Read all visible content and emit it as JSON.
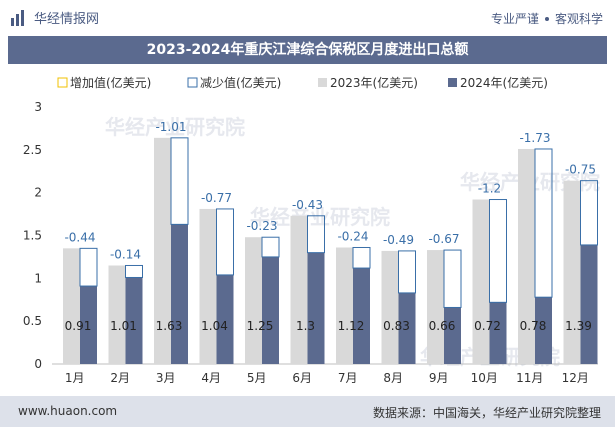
{
  "header": {
    "logo_text": "华经情报网",
    "slogan_left": "专业严谨",
    "slogan_right": "客观科学"
  },
  "title": "2023-2024年重庆江津综合保税区月度进出口总额",
  "watermark": "华经产业研究院",
  "footer": {
    "website": "www.huaon.com",
    "source": "数据来源：中国海关，华经产业研究院整理"
  },
  "colors": {
    "series_2023": "#d9d9d9",
    "series_2024": "#5b6a8f",
    "increase_outline": "#f0c000",
    "decrease_outline": "#3a6fa8",
    "decrease_label": "#3a6fa8"
  },
  "chart_data": {
    "type": "bar",
    "categories": [
      "1月",
      "2月",
      "3月",
      "4月",
      "5月",
      "6月",
      "7月",
      "8月",
      "9月",
      "10月",
      "11月",
      "12月"
    ],
    "series": [
      {
        "name": "2023年(亿美元)",
        "values": [
          1.35,
          1.15,
          2.64,
          1.81,
          1.48,
          1.73,
          1.36,
          1.32,
          1.33,
          1.92,
          2.51,
          2.14
        ]
      },
      {
        "name": "2024年(亿美元)",
        "values": [
          0.91,
          1.01,
          1.63,
          1.04,
          1.25,
          1.3,
          1.12,
          0.83,
          0.66,
          0.72,
          0.78,
          1.39
        ]
      }
    ],
    "changes": [
      -0.44,
      -0.14,
      -1.01,
      -0.77,
      -0.23,
      -0.43,
      -0.24,
      -0.49,
      -0.67,
      -1.2,
      -1.73,
      -0.75
    ],
    "legend": [
      "增加值(亿美元)",
      "减少值(亿美元)",
      "2023年(亿美元)",
      "2024年(亿美元)"
    ],
    "legend_position": "top",
    "y_ticks": [
      "0",
      "0.5",
      "1",
      "1.5",
      "2",
      "2.5",
      "3"
    ],
    "ylim": [
      0,
      3
    ],
    "grid": false
  }
}
